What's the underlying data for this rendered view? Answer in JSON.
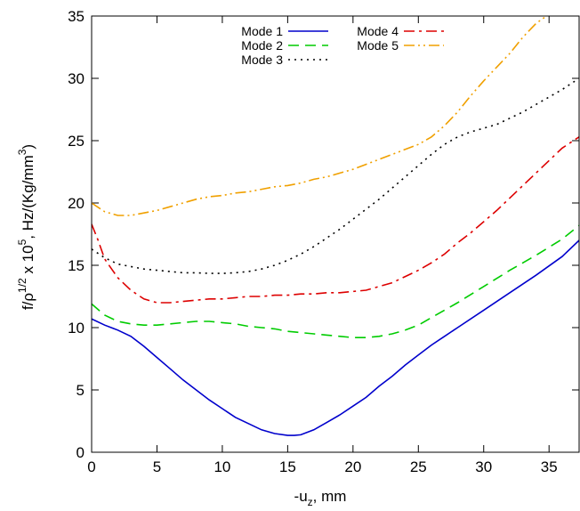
{
  "chart_data": {
    "type": "line",
    "xlabel": {
      "main": "-u",
      "sub": "z",
      "tail": ", mm"
    },
    "ylabel": {
      "a": "f/ρ",
      "b": "1/2",
      "c": " x 10",
      "d": "5",
      "e": ", Hz/(Kg/mm",
      "f": "3",
      "g": ")"
    },
    "xlim": [
      0,
      37.3
    ],
    "ylim": [
      0,
      35
    ],
    "xticks": [
      0,
      5,
      10,
      15,
      20,
      25,
      30,
      35
    ],
    "yticks": [
      0,
      5,
      10,
      15,
      20,
      25,
      30,
      35
    ],
    "grid": false,
    "legend_position": "top",
    "series": [
      {
        "name": "Mode 1",
        "color": "#0000cc",
        "dash": "solid",
        "points": [
          [
            0,
            10.7
          ],
          [
            1,
            10.2
          ],
          [
            2,
            9.8
          ],
          [
            3,
            9.3
          ],
          [
            4,
            8.5
          ],
          [
            5,
            7.6
          ],
          [
            6,
            6.7
          ],
          [
            7,
            5.8
          ],
          [
            8,
            5.0
          ],
          [
            9,
            4.2
          ],
          [
            10,
            3.5
          ],
          [
            11,
            2.8
          ],
          [
            12,
            2.3
          ],
          [
            13,
            1.8
          ],
          [
            14,
            1.5
          ],
          [
            15,
            1.35
          ],
          [
            15.5,
            1.35
          ],
          [
            16,
            1.4
          ],
          [
            17,
            1.8
          ],
          [
            18,
            2.4
          ],
          [
            19,
            3.0
          ],
          [
            20,
            3.7
          ],
          [
            21,
            4.4
          ],
          [
            22,
            5.3
          ],
          [
            23,
            6.1
          ],
          [
            24,
            7.0
          ],
          [
            25,
            7.8
          ],
          [
            26,
            8.6
          ],
          [
            27,
            9.3
          ],
          [
            28,
            10.0
          ],
          [
            30,
            11.4
          ],
          [
            32,
            12.8
          ],
          [
            34,
            14.2
          ],
          [
            36,
            15.7
          ],
          [
            37.3,
            17.0
          ]
        ]
      },
      {
        "name": "Mode 2",
        "color": "#00cc00",
        "dash": "long-dash",
        "points": [
          [
            0,
            11.9
          ],
          [
            1,
            11.0
          ],
          [
            2,
            10.5
          ],
          [
            3,
            10.3
          ],
          [
            4,
            10.2
          ],
          [
            5,
            10.2
          ],
          [
            6,
            10.3
          ],
          [
            7,
            10.4
          ],
          [
            8,
            10.5
          ],
          [
            9,
            10.5
          ],
          [
            10,
            10.4
          ],
          [
            11,
            10.3
          ],
          [
            12,
            10.1
          ],
          [
            13,
            10.0
          ],
          [
            14,
            9.9
          ],
          [
            15,
            9.7
          ],
          [
            16,
            9.6
          ],
          [
            17,
            9.5
          ],
          [
            18,
            9.4
          ],
          [
            19,
            9.3
          ],
          [
            20,
            9.2
          ],
          [
            21,
            9.2
          ],
          [
            22,
            9.3
          ],
          [
            23,
            9.5
          ],
          [
            24,
            9.8
          ],
          [
            25,
            10.2
          ],
          [
            26,
            10.8
          ],
          [
            27,
            11.4
          ],
          [
            28,
            12.0
          ],
          [
            30,
            13.3
          ],
          [
            32,
            14.6
          ],
          [
            34,
            15.8
          ],
          [
            36,
            17.1
          ],
          [
            37.3,
            18.2
          ]
        ]
      },
      {
        "name": "Mode 3",
        "color": "#000000",
        "dash": "dotted",
        "points": [
          [
            0,
            16.3
          ],
          [
            1,
            15.6
          ],
          [
            2,
            15.1
          ],
          [
            3,
            14.9
          ],
          [
            4,
            14.7
          ],
          [
            5,
            14.6
          ],
          [
            6,
            14.5
          ],
          [
            7,
            14.4
          ],
          [
            8,
            14.4
          ],
          [
            9,
            14.35
          ],
          [
            10,
            14.35
          ],
          [
            11,
            14.4
          ],
          [
            12,
            14.5
          ],
          [
            13,
            14.7
          ],
          [
            14,
            15.0
          ],
          [
            15,
            15.4
          ],
          [
            16,
            15.9
          ],
          [
            17,
            16.5
          ],
          [
            18,
            17.2
          ],
          [
            19,
            17.9
          ],
          [
            20,
            18.7
          ],
          [
            21,
            19.5
          ],
          [
            22,
            20.3
          ],
          [
            23,
            21.2
          ],
          [
            24,
            22.1
          ],
          [
            25,
            23.0
          ],
          [
            26,
            23.9
          ],
          [
            27,
            24.7
          ],
          [
            28,
            25.3
          ],
          [
            29,
            25.7
          ],
          [
            30,
            26.0
          ],
          [
            31,
            26.3
          ],
          [
            32,
            26.8
          ],
          [
            33,
            27.3
          ],
          [
            34,
            27.9
          ],
          [
            35,
            28.5
          ],
          [
            36,
            29.1
          ],
          [
            37.3,
            30.0
          ]
        ]
      },
      {
        "name": "Mode 4",
        "color": "#dd0000",
        "dash": "dash-dot",
        "points": [
          [
            0,
            18.3
          ],
          [
            0.5,
            17.0
          ],
          [
            1,
            15.5
          ],
          [
            2,
            14.0
          ],
          [
            3,
            13.0
          ],
          [
            4,
            12.3
          ],
          [
            5,
            12.0
          ],
          [
            6,
            12.0
          ],
          [
            7,
            12.1
          ],
          [
            8,
            12.2
          ],
          [
            9,
            12.3
          ],
          [
            10,
            12.3
          ],
          [
            11,
            12.4
          ],
          [
            12,
            12.5
          ],
          [
            13,
            12.5
          ],
          [
            14,
            12.6
          ],
          [
            15,
            12.6
          ],
          [
            16,
            12.7
          ],
          [
            17,
            12.7
          ],
          [
            18,
            12.8
          ],
          [
            19,
            12.8
          ],
          [
            20,
            12.9
          ],
          [
            21,
            13.0
          ],
          [
            22,
            13.3
          ],
          [
            23,
            13.6
          ],
          [
            24,
            14.1
          ],
          [
            25,
            14.6
          ],
          [
            26,
            15.2
          ],
          [
            27,
            15.9
          ],
          [
            28,
            16.8
          ],
          [
            29,
            17.6
          ],
          [
            30,
            18.5
          ],
          [
            31,
            19.4
          ],
          [
            32,
            20.4
          ],
          [
            33,
            21.4
          ],
          [
            34,
            22.4
          ],
          [
            35,
            23.4
          ],
          [
            36,
            24.4
          ],
          [
            37.3,
            25.3
          ]
        ]
      },
      {
        "name": "Mode 5",
        "color": "#f0a000",
        "dash": "dash-dot-dot",
        "points": [
          [
            0,
            20.0
          ],
          [
            1,
            19.3
          ],
          [
            2,
            19.0
          ],
          [
            3,
            19.0
          ],
          [
            4,
            19.2
          ],
          [
            5,
            19.4
          ],
          [
            6,
            19.7
          ],
          [
            7,
            20.0
          ],
          [
            8,
            20.3
          ],
          [
            9,
            20.5
          ],
          [
            10,
            20.6
          ],
          [
            11,
            20.8
          ],
          [
            12,
            20.9
          ],
          [
            13,
            21.1
          ],
          [
            14,
            21.3
          ],
          [
            15,
            21.4
          ],
          [
            16,
            21.6
          ],
          [
            17,
            21.9
          ],
          [
            18,
            22.1
          ],
          [
            19,
            22.4
          ],
          [
            20,
            22.7
          ],
          [
            21,
            23.1
          ],
          [
            22,
            23.5
          ],
          [
            23,
            23.9
          ],
          [
            24,
            24.3
          ],
          [
            25,
            24.7
          ],
          [
            26,
            25.3
          ],
          [
            27,
            26.2
          ],
          [
            28,
            27.3
          ],
          [
            29,
            28.6
          ],
          [
            30,
            29.8
          ],
          [
            31,
            30.9
          ],
          [
            32,
            32.0
          ],
          [
            33,
            33.3
          ],
          [
            34,
            34.4
          ],
          [
            34.8,
            35.0
          ]
        ]
      }
    ]
  }
}
